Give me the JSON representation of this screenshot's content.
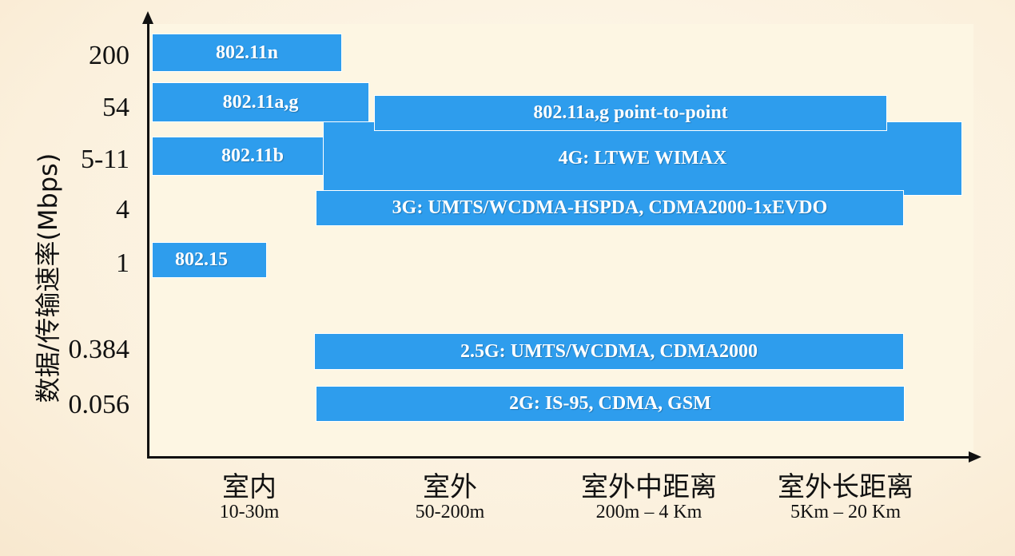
{
  "y_axis": {
    "title": "数据/传输速率(Mbps)",
    "ticks": [
      "200",
      "54",
      "5-11",
      "4",
      "1",
      "0.384",
      "0.056"
    ]
  },
  "x_axis": {
    "categories": [
      {
        "label": "室内",
        "range": "10-30m"
      },
      {
        "label": "室外",
        "range": "50-200m"
      },
      {
        "label": "室外中距离",
        "range": "200m – 4 Km"
      },
      {
        "label": "室外长距离",
        "range": "5Km – 20 Km"
      }
    ]
  },
  "bars": [
    {
      "label": "802.11n"
    },
    {
      "label": "802.11a,g"
    },
    {
      "label": "802.11a,g point-to-point"
    },
    {
      "label": "802.11b"
    },
    {
      "label": "4G: LTWE WIMAX"
    },
    {
      "label": "3G: UMTS/WCDMA-HSPDA, CDMA2000-1xEVDO"
    },
    {
      "label": "802.15"
    },
    {
      "label": "2.5G: UMTS/WCDMA, CDMA2000"
    },
    {
      "label": "2G: IS-95, CDMA, GSM"
    }
  ],
  "colors": {
    "bar": "#2e9ded",
    "background": "#fdf6e3"
  }
}
